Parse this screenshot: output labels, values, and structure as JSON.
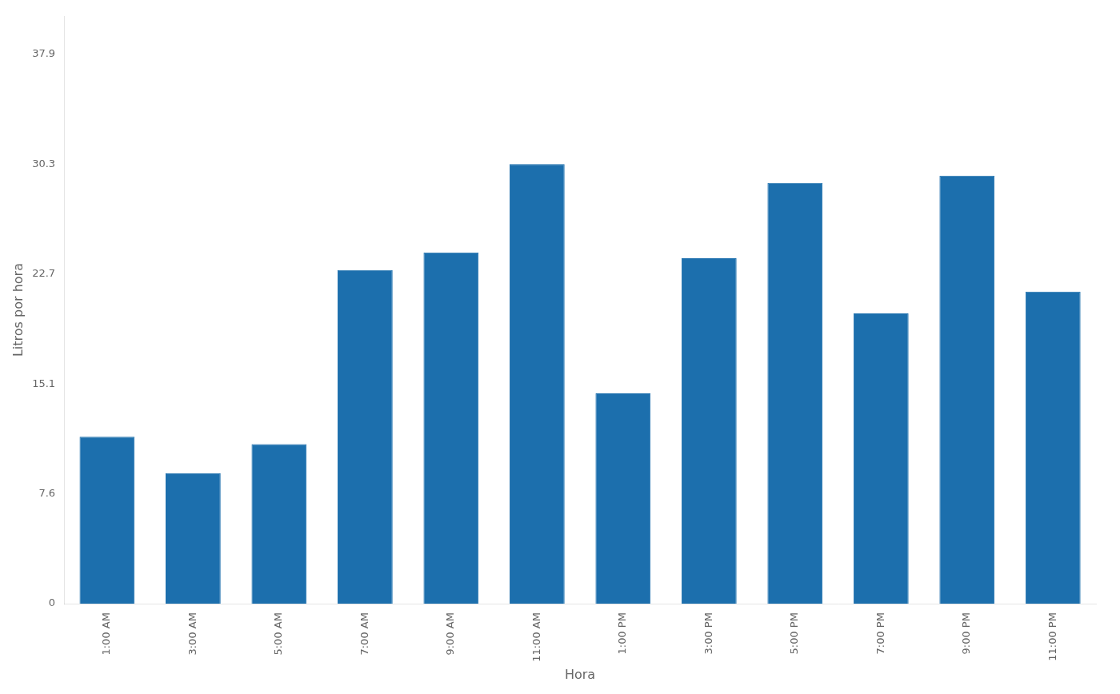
{
  "chart_data": {
    "type": "bar",
    "xlabel": "Hora",
    "ylabel": "Litros por hora",
    "categories": [
      "1:00 AM",
      "3:00 AM",
      "5:00 AM",
      "7:00 AM",
      "9:00 AM",
      "11:00 AM",
      "1:00 PM",
      "3:00 PM",
      "5:00 PM",
      "7:00 PM",
      "9:00 PM",
      "11:00 PM"
    ],
    "values": [
      11.5,
      9.0,
      11.0,
      23.0,
      24.2,
      30.3,
      14.5,
      23.8,
      29.0,
      20.0,
      29.5,
      21.5
    ],
    "color": "#1c6fad",
    "ylim": [
      0,
      40.5
    ],
    "yticks": [
      0,
      7.6,
      15.1,
      22.7,
      30.3,
      37.9
    ],
    "grid": false
  }
}
